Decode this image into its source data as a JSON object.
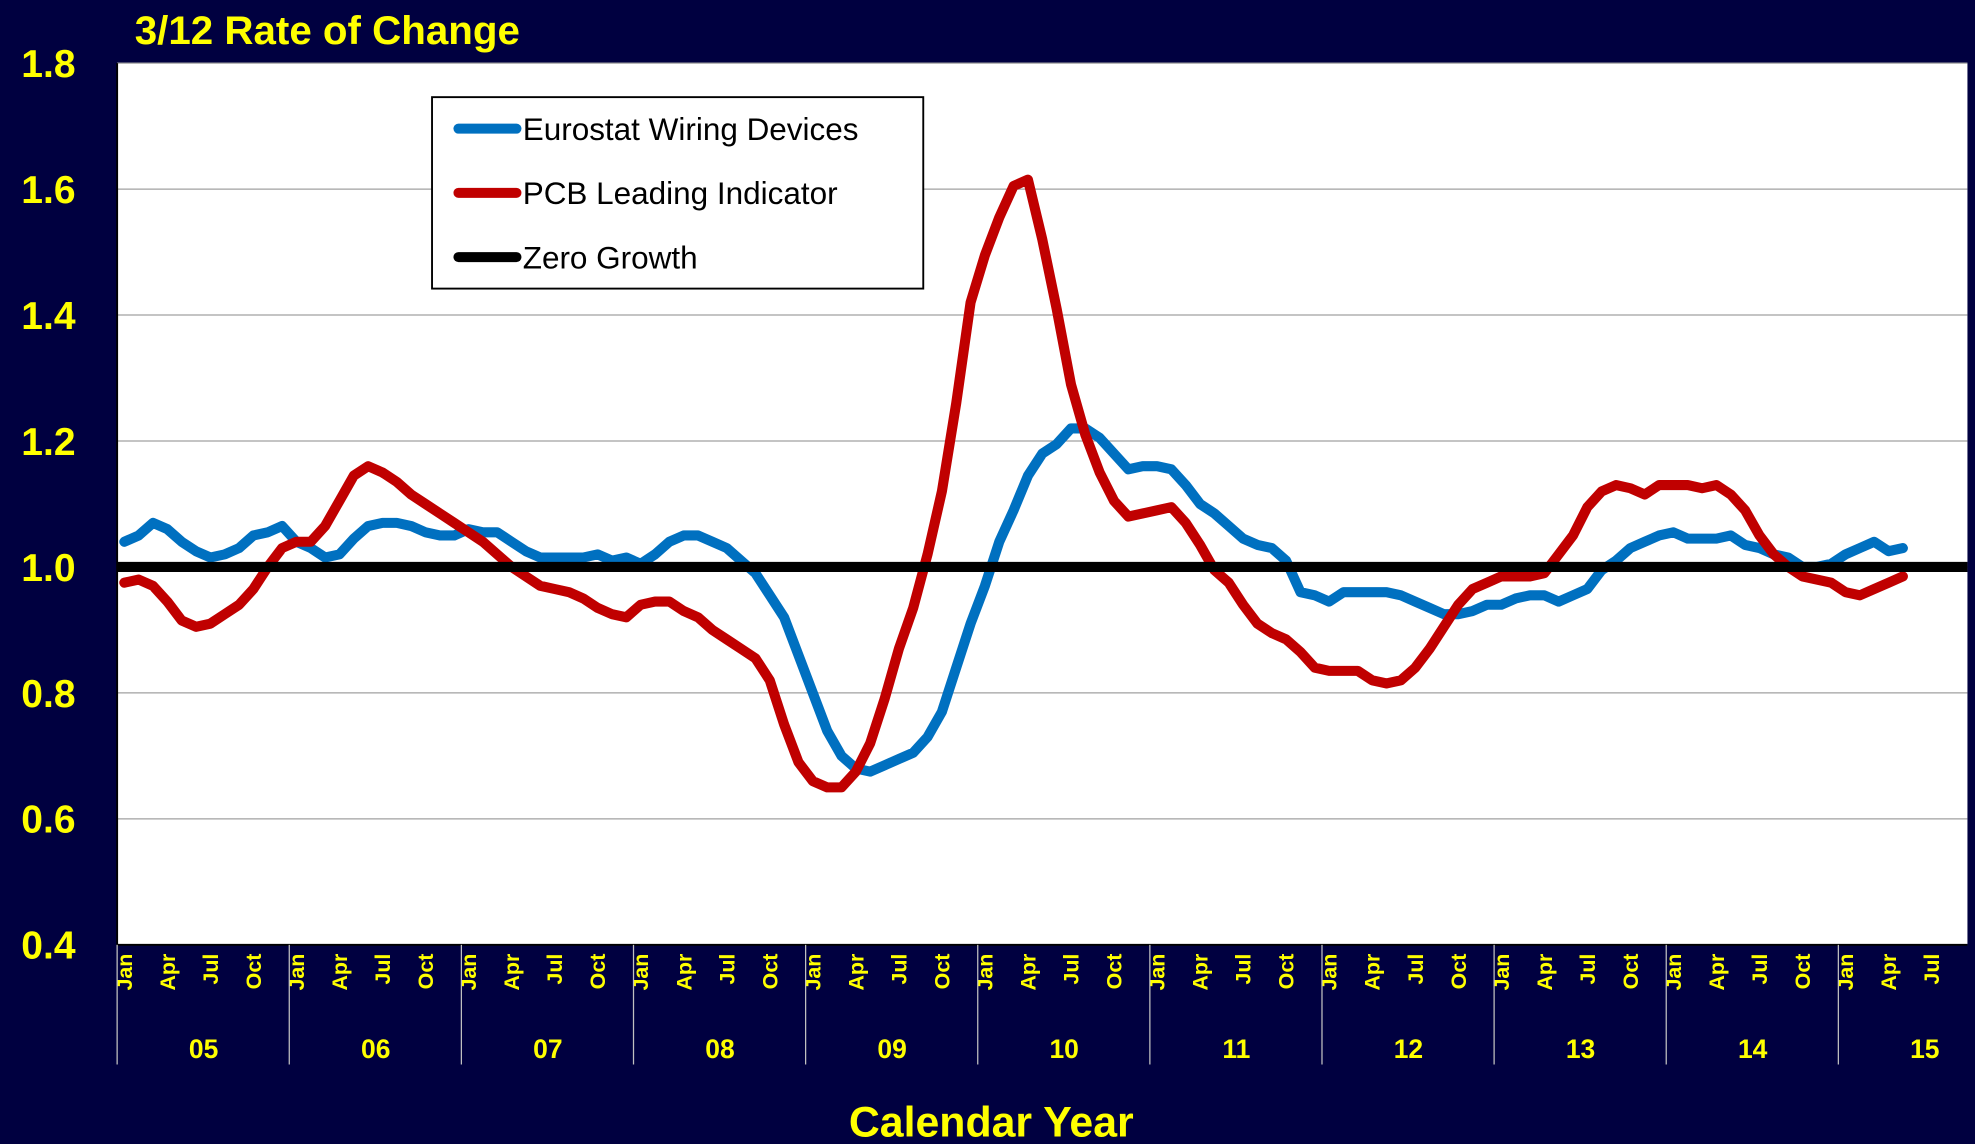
{
  "chart_data": {
    "type": "line",
    "title": "3/12 Rate of Change",
    "x_label": "Calendar Year",
    "categories": [
      "Jan",
      null,
      null,
      "Apr",
      null,
      null,
      "Jul",
      null,
      null,
      "Oct",
      null,
      null,
      "Jan",
      null,
      null,
      "Apr",
      null,
      null,
      "Jul",
      null,
      null,
      "Oct",
      null,
      null,
      "Jan",
      null,
      null,
      "Apr",
      null,
      null,
      "Jul",
      null,
      null,
      "Oct",
      null,
      null,
      "Jan",
      null,
      null,
      "Apr",
      null,
      null,
      "Jul",
      null,
      null,
      "Oct",
      null,
      null,
      "Jan",
      null,
      null,
      "Apr",
      null,
      null,
      "Jul",
      null,
      null,
      "Oct",
      null,
      null,
      "Jan",
      null,
      null,
      "Apr",
      null,
      null,
      "Jul",
      null,
      null,
      "Oct",
      null,
      null,
      "Jan",
      null,
      null,
      "Apr",
      null,
      null,
      "Jul",
      null,
      null,
      "Oct",
      null,
      null,
      "Jan",
      null,
      null,
      "Apr",
      null,
      null,
      "Jul",
      null,
      null,
      "Oct",
      null,
      null,
      "Jan",
      null,
      null,
      "Apr",
      null,
      null,
      "Jul",
      null,
      null,
      "Oct",
      null,
      null,
      "Jan",
      null,
      null,
      "Apr",
      null,
      null,
      "Jul",
      null,
      null,
      "Oct",
      null,
      null,
      "Jan",
      null,
      null,
      "Apr",
      null,
      null,
      "Jul",
      null,
      null
    ],
    "years": [
      "05",
      "06",
      "07",
      "08",
      "09",
      "10",
      "11",
      "12",
      "13",
      "14",
      "15"
    ],
    "series": [
      {
        "name": "Eurostat Wiring Devices",
        "color": "#0070c0",
        "values": [
          1.04,
          1.05,
          1.07,
          1.06,
          1.04,
          1.025,
          1.015,
          1.02,
          1.03,
          1.05,
          1.055,
          1.065,
          1.04,
          1.03,
          1.015,
          1.02,
          1.045,
          1.065,
          1.07,
          1.07,
          1.065,
          1.055,
          1.05,
          1.05,
          1.06,
          1.055,
          1.055,
          1.04,
          1.025,
          1.015,
          1.015,
          1.015,
          1.015,
          1.02,
          1.01,
          1.015,
          1.005,
          1.02,
          1.04,
          1.05,
          1.05,
          1.04,
          1.03,
          1.01,
          0.99,
          0.955,
          0.92,
          0.86,
          0.8,
          0.74,
          0.7,
          0.68,
          0.675,
          0.685,
          0.695,
          0.705,
          0.73,
          0.77,
          0.84,
          0.91,
          0.97,
          1.04,
          1.09,
          1.145,
          1.18,
          1.195,
          1.22,
          1.22,
          1.205,
          1.18,
          1.155,
          1.16,
          1.16,
          1.155,
          1.13,
          1.1,
          1.085,
          1.065,
          1.045,
          1.035,
          1.03,
          1.01,
          0.96,
          0.955,
          0.945,
          0.96,
          0.96,
          0.96,
          0.96,
          0.955,
          0.945,
          0.935,
          0.925,
          0.925,
          0.93,
          0.94,
          0.94,
          0.95,
          0.955,
          0.955,
          0.945,
          0.955,
          0.965,
          0.995,
          1.01,
          1.03,
          1.04,
          1.05,
          1.055,
          1.045,
          1.045,
          1.045,
          1.05,
          1.035,
          1.03,
          1.02,
          1.015,
          1.0,
          1.0,
          1.005,
          1.02,
          1.03,
          1.04,
          1.025,
          1.03,
          null,
          null,
          null,
          null
        ]
      },
      {
        "name": "PCB Leading Indicator",
        "color": "#c00000",
        "values": [
          0.975,
          0.98,
          0.97,
          0.945,
          0.915,
          0.905,
          0.91,
          0.925,
          0.94,
          0.965,
          1.0,
          1.03,
          1.04,
          1.04,
          1.065,
          1.105,
          1.145,
          1.16,
          1.15,
          1.135,
          1.115,
          1.1,
          1.085,
          1.07,
          1.055,
          1.04,
          1.02,
          1.0,
          0.985,
          0.97,
          0.965,
          0.96,
          0.95,
          0.935,
          0.925,
          0.92,
          0.94,
          0.945,
          0.945,
          0.93,
          0.92,
          0.9,
          0.885,
          0.87,
          0.855,
          0.82,
          0.75,
          0.69,
          0.66,
          0.65,
          0.65,
          0.675,
          0.72,
          0.79,
          0.87,
          0.935,
          1.02,
          1.12,
          1.26,
          1.42,
          1.495,
          1.555,
          1.605,
          1.615,
          1.52,
          1.41,
          1.29,
          1.21,
          1.15,
          1.105,
          1.08,
          1.085,
          1.09,
          1.095,
          1.07,
          1.035,
          0.995,
          0.975,
          0.94,
          0.91,
          0.895,
          0.885,
          0.865,
          0.84,
          0.835,
          0.835,
          0.835,
          0.82,
          0.815,
          0.82,
          0.84,
          0.87,
          0.905,
          0.94,
          0.965,
          0.975,
          0.985,
          0.985,
          0.985,
          0.99,
          1.02,
          1.05,
          1.095,
          1.12,
          1.13,
          1.125,
          1.115,
          1.13,
          1.13,
          1.13,
          1.125,
          1.13,
          1.115,
          1.09,
          1.05,
          1.02,
          1.0,
          0.985,
          0.98,
          0.975,
          0.96,
          0.955,
          0.965,
          0.975,
          0.985,
          null,
          null,
          null,
          null
        ]
      }
    ],
    "reference_line": {
      "name": "Zero Growth",
      "color": "#000000",
      "value": 1
    },
    "ylim": [
      0.4,
      1.8
    ],
    "yticks": [
      0.4,
      0.6,
      0.8,
      {
        "value": 1,
        "label": "1.0"
      },
      1.2,
      1.4,
      1.6,
      1.8
    ],
    "grid": true,
    "legend": "top-left"
  }
}
